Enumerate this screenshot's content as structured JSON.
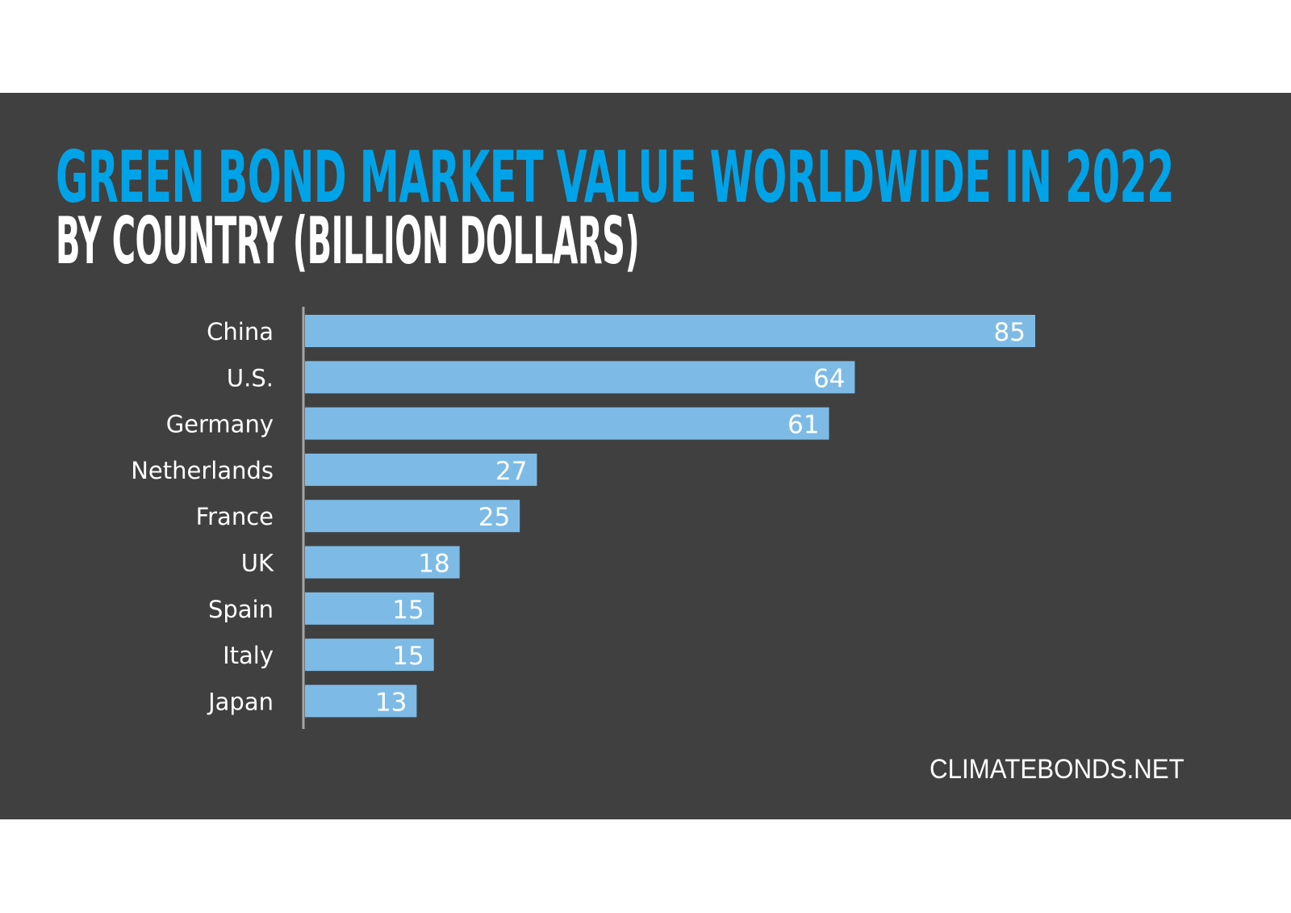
{
  "colors": {
    "background": "#404040",
    "bar": "#7dbbe6",
    "title": "#00a3e8",
    "text": "#ffffff",
    "axis": "#a6a6a6"
  },
  "chart_data": {
    "type": "bar",
    "orientation": "horizontal",
    "title": "GREEN BOND MARKET VALUE WORLDWIDE IN 2022",
    "subtitle": "BY COUNTRY (BILLION DOLLARS)",
    "categories": [
      "China",
      "U.S.",
      "Germany",
      "Netherlands",
      "France",
      "UK",
      "Spain",
      "Italy",
      "Japan"
    ],
    "values": [
      85,
      64,
      61,
      27,
      25,
      18,
      15,
      15,
      13
    ],
    "data_labels": [
      "85",
      "64",
      "61",
      "27",
      "25",
      "18",
      "15",
      "15",
      "13"
    ],
    "xlabel": "",
    "ylabel": "",
    "xlim": [
      0,
      85
    ],
    "grid": false,
    "legend": "none"
  },
  "source": "CLIMATEBONDS.NET"
}
